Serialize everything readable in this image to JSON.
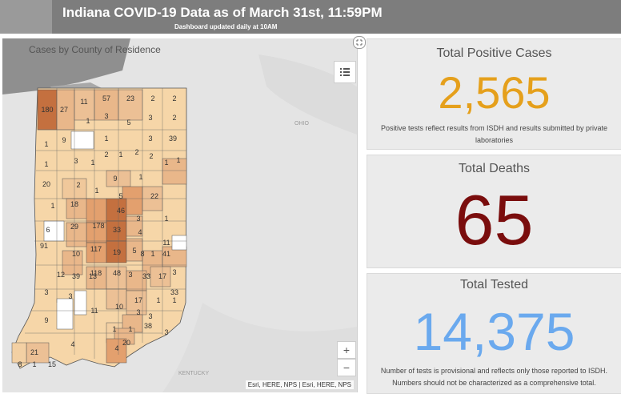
{
  "header": {
    "title": "Indiana COVID-19 Data as of March 31st, 11:59PM",
    "subtitle": "Dashboard updated daily at 10AM"
  },
  "map": {
    "title": "Cases by County of Residence",
    "legend_icon": "list-icon",
    "zoom_in": "+",
    "zoom_out": "−",
    "attribution": "Esri, HERE, NPS | Esri, HERE, NPS",
    "bg_labels": [
      "OHIO",
      "KENTUCKY"
    ],
    "county_labels": [
      "180",
      "27",
      "11",
      "57",
      "23",
      "2",
      "2",
      "1",
      "3",
      "5",
      "3",
      "2",
      "1",
      "9",
      "1",
      "3",
      "39",
      "1",
      "3",
      "1",
      "2",
      "1",
      "2",
      "2",
      "1",
      "1",
      "20",
      "9",
      "1",
      "2",
      "18",
      "1",
      "5",
      "22",
      "1",
      "6",
      "29",
      "178",
      "46",
      "3",
      "1",
      "91",
      "117",
      "33",
      "4",
      "11",
      "10",
      "8",
      "41",
      "118",
      "19",
      "5",
      "1",
      "12",
      "39",
      "3",
      "3",
      "33",
      "3",
      "13",
      "48",
      "3",
      "33",
      "17",
      "11",
      "10",
      "17",
      "1",
      "1",
      "3",
      "3",
      "9",
      "1",
      "1",
      "38",
      "4",
      "3",
      "21",
      "4",
      "20",
      "8",
      "1",
      "15"
    ]
  },
  "stats": {
    "positive": {
      "label": "Total Positive Cases",
      "value": "2,565",
      "note": "Positive tests reflect results from ISDH and results submitted by private laboratories"
    },
    "deaths": {
      "label": "Total Deaths",
      "value": "65"
    },
    "tested": {
      "label": "Total Tested",
      "value": "14,375",
      "note": "Number of tests is provisional and reflects only those reported to ISDH. Numbers should not be characterized as a comprehensive total."
    }
  },
  "colors": {
    "header_bg": "#7d7d7d",
    "positive": "#e5a01c",
    "deaths": "#7a0d0d",
    "tested": "#6aa9ee",
    "county_light": "#f6d6a8",
    "county_mid": "#e3a06e",
    "county_dark": "#c4703f"
  }
}
